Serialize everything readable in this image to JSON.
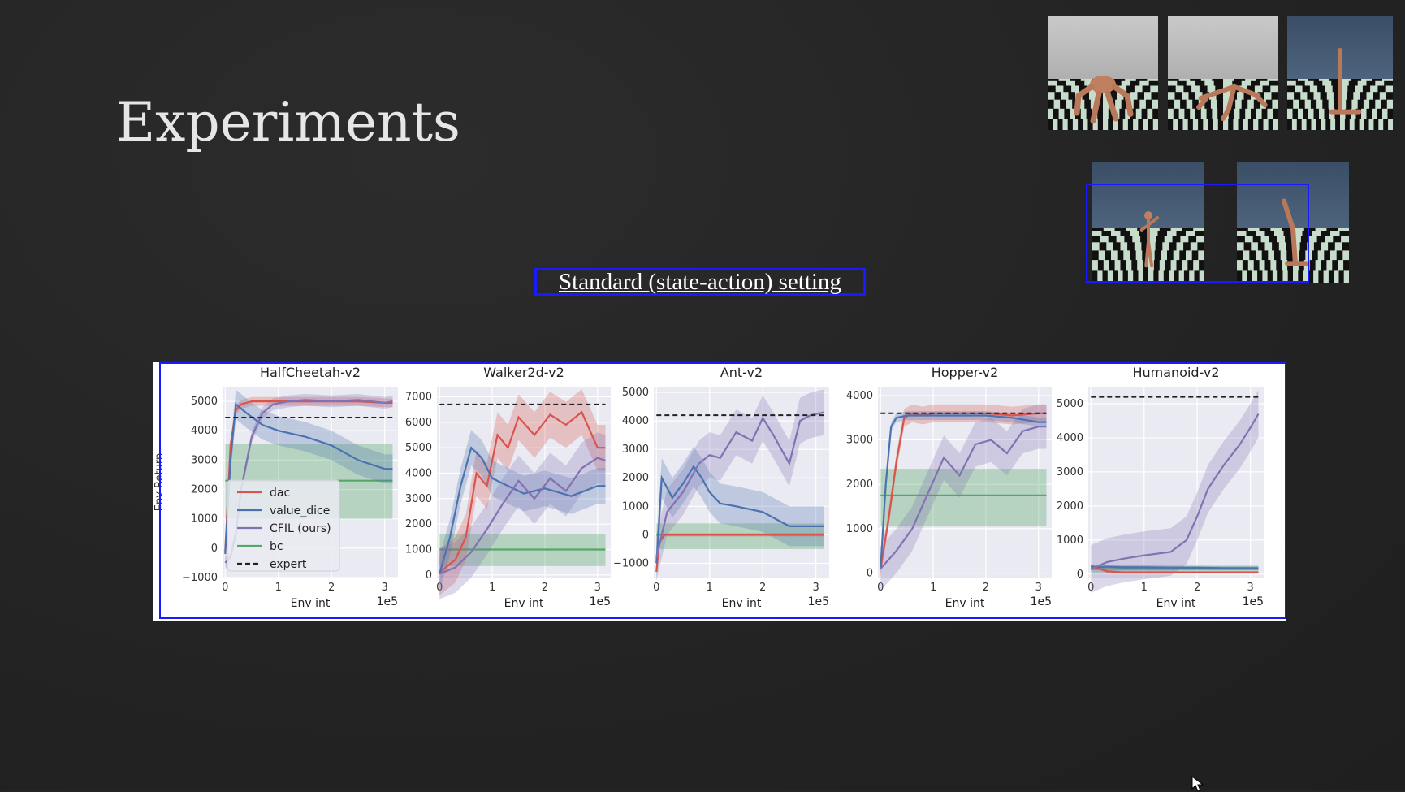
{
  "slide": {
    "title": "Experiments",
    "subtitle": "Standard (state-action) setting"
  },
  "colors": {
    "dac": "#d9544d",
    "value_dice": "#4c72b0",
    "cfil": "#8172b2",
    "bc": "#55a868",
    "expert": "#222222"
  },
  "thumbnails": [
    {
      "name": "ant-env-thumbnail",
      "agent": "ant-robot-icon"
    },
    {
      "name": "halfcheetah-env-thumbnail",
      "agent": "cheetah-robot-icon"
    },
    {
      "name": "hopper-env-thumbnail",
      "agent": "hopper-robot-icon"
    },
    {
      "name": "humanoid-env-thumbnail",
      "agent": "humanoid-robot-icon"
    },
    {
      "name": "walker-env-thumbnail",
      "agent": "walker-robot-icon"
    }
  ],
  "chart_data": [
    {
      "type": "line",
      "title": "HalfCheetah-v2",
      "xlabel": "Env int",
      "ylabel": "Env Return",
      "x_multiplier": "1e5",
      "xlim": [
        -0.05,
        3.25
      ],
      "ylim": [
        -1000,
        5500
      ],
      "xticks": [
        0,
        1,
        2,
        3
      ],
      "yticks": [
        -1000,
        0,
        1000,
        2000,
        3000,
        4000,
        5000
      ],
      "grid": true,
      "legend": {
        "placement": "bottom-left",
        "entries": [
          "dac",
          "value_dice",
          "CFIL (ours)",
          "bc",
          "expert"
        ]
      },
      "expert": 4450,
      "bc": {
        "mean": 2300,
        "low": 1000,
        "high": 3550
      },
      "series": [
        {
          "name": "dac",
          "key": "dac",
          "x": [
            0,
            0.1,
            0.2,
            0.3,
            0.5,
            1.0,
            1.5,
            2.0,
            2.5,
            3.0,
            3.15
          ],
          "y": [
            -100,
            3500,
            4700,
            4900,
            5000,
            5000,
            5000,
            5000,
            5000,
            4950,
            4950
          ],
          "band": 150
        },
        {
          "name": "value_dice",
          "key": "value_dice",
          "x": [
            0,
            0.1,
            0.2,
            0.4,
            0.7,
            1.0,
            1.5,
            2.0,
            2.5,
            3.0,
            3.15
          ],
          "y": [
            -200,
            3000,
            4900,
            4600,
            4200,
            4000,
            3800,
            3500,
            3000,
            2700,
            2700
          ],
          "band": 500
        },
        {
          "name": "CFIL (ours)",
          "key": "cfil",
          "x": [
            0,
            0.1,
            0.2,
            0.3,
            0.5,
            0.7,
            0.9,
            1.2,
            1.5,
            2.0,
            2.5,
            3.0,
            3.15
          ],
          "y": [
            -500,
            -300,
            500,
            2000,
            3800,
            4600,
            4900,
            5000,
            5050,
            5000,
            5050,
            4950,
            5000
          ],
          "band": 200
        }
      ]
    },
    {
      "type": "line",
      "title": "Walker2d-v2",
      "xlabel": "Env int",
      "ylabel": "",
      "x_multiplier": "1e5",
      "xlim": [
        -0.05,
        3.25
      ],
      "ylim": [
        -100,
        7400
      ],
      "xticks": [
        0,
        1,
        2,
        3
      ],
      "yticks": [
        0,
        1000,
        2000,
        3000,
        4000,
        5000,
        6000,
        7000
      ],
      "grid": true,
      "expert": 6700,
      "bc": {
        "mean": 1000,
        "low": 350,
        "high": 1600
      },
      "series": [
        {
          "name": "dac",
          "key": "dac",
          "x": [
            0,
            0.3,
            0.5,
            0.7,
            0.9,
            1.1,
            1.3,
            1.5,
            1.8,
            2.1,
            2.4,
            2.7,
            3.0,
            3.15
          ],
          "y": [
            100,
            600,
            1500,
            4000,
            3500,
            5500,
            5000,
            6200,
            5500,
            6300,
            5900,
            6400,
            5000,
            5000
          ],
          "band": 900
        },
        {
          "name": "value_dice",
          "key": "value_dice",
          "x": [
            0,
            0.2,
            0.4,
            0.6,
            0.8,
            1.0,
            1.3,
            1.6,
            2.0,
            2.5,
            3.0,
            3.15
          ],
          "y": [
            50,
            1500,
            3500,
            5000,
            4600,
            3800,
            3500,
            3200,
            3400,
            3100,
            3500,
            3500
          ],
          "band": 700
        },
        {
          "name": "CFIL (ours)",
          "key": "cfil",
          "x": [
            0,
            0.3,
            0.6,
            0.9,
            1.2,
            1.5,
            1.8,
            2.1,
            2.4,
            2.7,
            3.0,
            3.15
          ],
          "y": [
            50,
            300,
            900,
            1800,
            2800,
            3700,
            3000,
            3800,
            3300,
            4200,
            4600,
            4500
          ],
          "band": 1000
        }
      ]
    },
    {
      "type": "line",
      "title": "Ant-v2",
      "xlabel": "Env int",
      "ylabel": "",
      "x_multiplier": "1e5",
      "xlim": [
        -0.05,
        3.25
      ],
      "ylim": [
        -1500,
        5200
      ],
      "xticks": [
        0,
        1,
        2,
        3
      ],
      "yticks": [
        -1000,
        0,
        1000,
        2000,
        3000,
        4000,
        5000
      ],
      "grid": true,
      "expert": 4200,
      "bc": {
        "mean": 0,
        "low": -500,
        "high": 400
      },
      "series": [
        {
          "name": "dac",
          "key": "dac",
          "x": [
            0,
            0.05,
            0.15,
            3.15
          ],
          "y": [
            -1300,
            -300,
            0,
            0
          ],
          "band": 60
        },
        {
          "name": "value_dice",
          "key": "value_dice",
          "x": [
            0,
            0.1,
            0.3,
            0.5,
            0.7,
            0.85,
            1.0,
            1.2,
            1.5,
            2.0,
            2.5,
            3.0,
            3.15
          ],
          "y": [
            -1000,
            2000,
            1300,
            1800,
            2400,
            2000,
            1500,
            1100,
            1000,
            800,
            300,
            300,
            300
          ],
          "band": 700
        },
        {
          "name": "CFIL (ours)",
          "key": "cfil",
          "x": [
            0,
            0.2,
            0.5,
            0.8,
            1.0,
            1.2,
            1.5,
            1.8,
            2.0,
            2.2,
            2.5,
            2.7,
            2.9,
            3.15
          ],
          "y": [
            -800,
            800,
            1500,
            2500,
            2800,
            2700,
            3600,
            3300,
            4100,
            3500,
            2500,
            4000,
            4200,
            4300
          ],
          "band": 800
        }
      ]
    },
    {
      "type": "line",
      "title": "Hopper-v2",
      "xlabel": "Env int",
      "ylabel": "",
      "x_multiplier": "1e5",
      "xlim": [
        -0.05,
        3.25
      ],
      "ylim": [
        -100,
        4200
      ],
      "xticks": [
        0,
        1,
        2,
        3
      ],
      "yticks": [
        0,
        1000,
        2000,
        3000,
        4000
      ],
      "grid": true,
      "expert": 3600,
      "bc": {
        "mean": 1750,
        "low": 1050,
        "high": 2350
      },
      "series": [
        {
          "name": "dac",
          "key": "dac",
          "x": [
            0,
            0.15,
            0.3,
            0.45,
            0.6,
            0.8,
            1.0,
            1.5,
            2.0,
            2.5,
            3.0,
            3.15
          ],
          "y": [
            100,
            1200,
            2500,
            3500,
            3600,
            3550,
            3600,
            3600,
            3600,
            3550,
            3600,
            3600
          ],
          "band": 200
        },
        {
          "name": "value_dice",
          "key": "value_dice",
          "x": [
            0,
            0.1,
            0.2,
            0.3,
            0.5,
            0.8,
            1.0,
            1.5,
            2.0,
            2.5,
            3.0,
            3.15
          ],
          "y": [
            100,
            2000,
            3300,
            3500,
            3550,
            3550,
            3550,
            3550,
            3550,
            3500,
            3400,
            3400
          ],
          "band": 100
        },
        {
          "name": "CFIL (ours)",
          "key": "cfil",
          "x": [
            0,
            0.3,
            0.6,
            0.9,
            1.2,
            1.5,
            1.8,
            2.1,
            2.4,
            2.7,
            3.0,
            3.15
          ],
          "y": [
            100,
            500,
            1000,
            1800,
            2600,
            2200,
            2900,
            3000,
            2700,
            3200,
            3300,
            3300
          ],
          "band": 500
        }
      ]
    },
    {
      "type": "line",
      "title": "Humanoid-v2",
      "xlabel": "Env int",
      "ylabel": "",
      "x_multiplier": "1e5",
      "xlim": [
        -0.05,
        3.25
      ],
      "ylim": [
        -100,
        5500
      ],
      "xticks": [
        0,
        1,
        2,
        3
      ],
      "yticks": [
        0,
        1000,
        2000,
        3000,
        4000,
        5000
      ],
      "grid": true,
      "expert": 5200,
      "bc": {
        "mean": 150,
        "low": 50,
        "high": 250
      },
      "series": [
        {
          "name": "dac",
          "key": "dac",
          "x": [
            0,
            0.3,
            0.6,
            1.0,
            1.5,
            2.0,
            2.5,
            3.0,
            3.15
          ],
          "y": [
            250,
            80,
            50,
            50,
            50,
            50,
            50,
            50,
            50
          ],
          "band": 40
        },
        {
          "name": "value_dice",
          "key": "value_dice",
          "x": [
            0,
            0.3,
            0.6,
            1.0,
            1.5,
            2.0,
            2.5,
            3.0,
            3.15
          ],
          "y": [
            200,
            220,
            200,
            200,
            190,
            190,
            180,
            180,
            180
          ],
          "band": 50
        },
        {
          "name": "CFIL (ours)",
          "key": "cfil",
          "x": [
            0,
            0.3,
            0.6,
            1.0,
            1.5,
            1.8,
            2.0,
            2.2,
            2.5,
            2.8,
            3.0,
            3.15
          ],
          "y": [
            150,
            350,
            450,
            550,
            650,
            1000,
            1700,
            2500,
            3200,
            3800,
            4300,
            4700
          ],
          "band": 700
        }
      ]
    }
  ]
}
